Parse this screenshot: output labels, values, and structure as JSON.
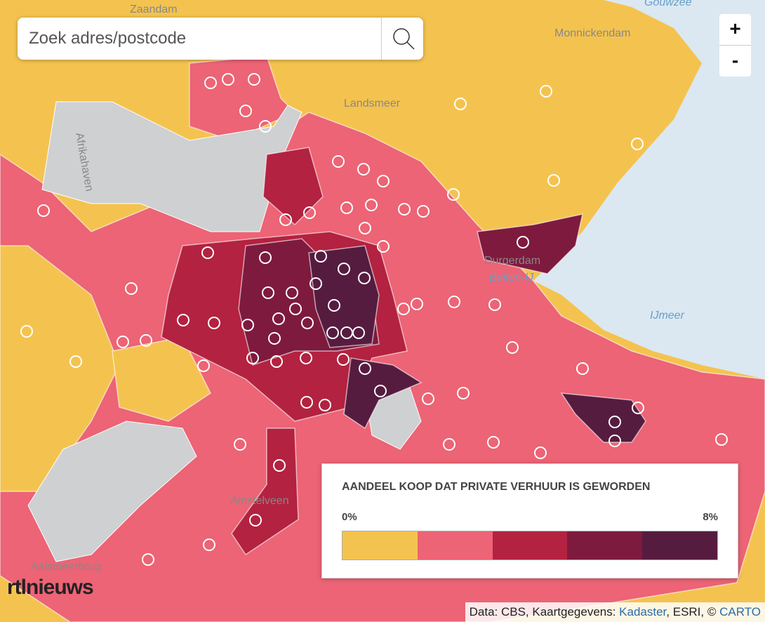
{
  "search": {
    "placeholder": "Zoek adres/postcode"
  },
  "zoom": {
    "in": "+",
    "out": "-"
  },
  "legend": {
    "title": "AANDEEL KOOP DAT PRIVATE VERHUUR IS GEWORDEN",
    "min_label": "0%",
    "max_label": "8%",
    "colors": [
      "#f4c34f",
      "#ec6475",
      "#b32240",
      "#7e1a3e",
      "#561c40"
    ]
  },
  "map_labels": [
    "Zaandam",
    "Gouwzee",
    "Monnickendam",
    "Landsmeer",
    "Durgerdam",
    "Buiten-IJ",
    "IJmeer",
    "Amstelveen",
    "Aalsmeerbrug",
    "Afrikahaven"
  ],
  "logo": "rtlnieuws",
  "attribution": {
    "prefix": "Data: CBS, Kaartgegevens: ",
    "link1": "Kadaster",
    "middle": ", ESRI, © ",
    "link2": "CARTO"
  }
}
